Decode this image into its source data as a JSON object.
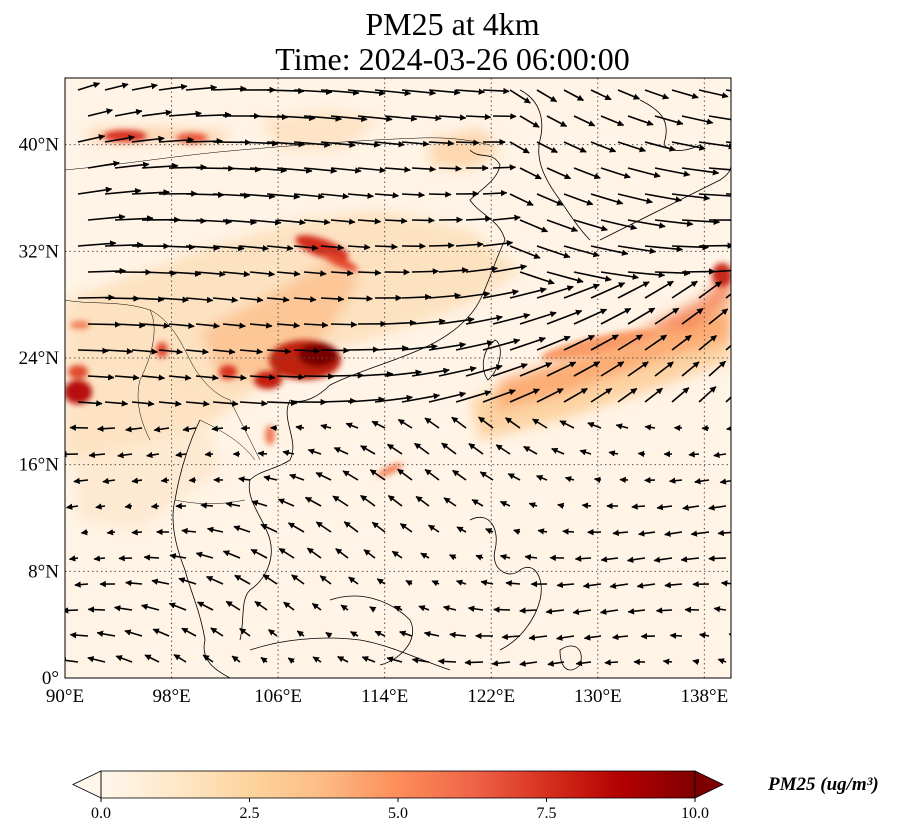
{
  "title": {
    "line1": "PM25 at 4km",
    "line2": "Time: 2024-03-26 06:00:00"
  },
  "map": {
    "extent": {
      "lon_min": 90,
      "lon_max": 140,
      "lat_min": 0,
      "lat_max": 45
    },
    "lon_ticks": [
      90,
      98,
      106,
      114,
      122,
      130,
      138
    ],
    "lon_tick_labels": [
      "90°E",
      "98°E",
      "106°E",
      "114°E",
      "122°E",
      "130°E",
      "138°E"
    ],
    "lat_ticks": [
      0,
      8,
      16,
      24,
      32,
      40
    ],
    "lat_tick_labels": [
      "0°",
      "8°N",
      "16°N",
      "24°N",
      "32°N",
      "40°N"
    ],
    "gridline_style": "dotted",
    "variable": "PM25",
    "level": "4km",
    "features": [
      "coastlines",
      "country borders",
      "wind vectors"
    ]
  },
  "colorbar": {
    "label": "PM25 (ug/m³)",
    "ticks": [
      0.0,
      2.5,
      5.0,
      7.5,
      10.0
    ],
    "tick_labels": [
      "0.0",
      "2.5",
      "5.0",
      "7.5",
      "10.0"
    ],
    "colormap": "OrRd",
    "extend": "both",
    "colors": [
      "#fff7ec",
      "#fee8c8",
      "#fdd49e",
      "#fdbb84",
      "#fc8d59",
      "#ef6548",
      "#d7301f",
      "#b30000",
      "#7f0000"
    ]
  }
}
